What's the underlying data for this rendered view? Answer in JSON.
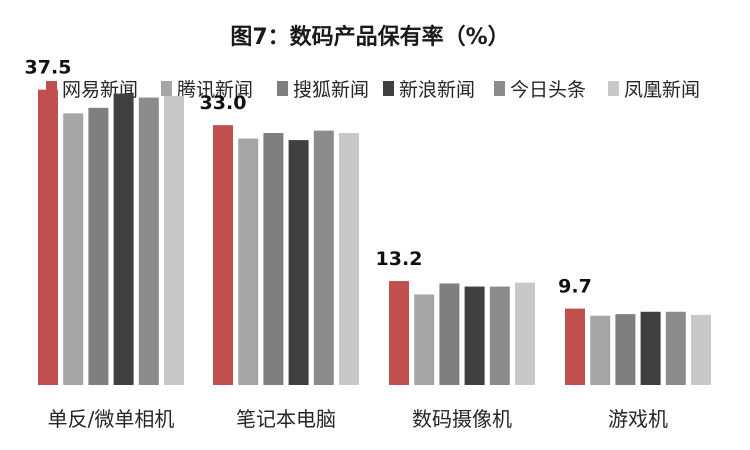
{
  "chart_data": {
    "type": "bar",
    "title": "图7：数码产品保有率（%）",
    "xlabel": "",
    "ylabel": "",
    "ylim": [
      0,
      40
    ],
    "grid": false,
    "legend_position": "top",
    "categories": [
      "单反/微单相机",
      "笔记本电脑",
      "数码摄像机",
      "游戏机"
    ],
    "series": [
      {
        "name": "网易新闻",
        "color": "#c0504d",
        "values": [
          37.5,
          33.0,
          13.2,
          9.7
        ]
      },
      {
        "name": "腾讯新闻",
        "color": "#a6a6a6",
        "values": [
          34.5,
          31.3,
          11.5,
          8.8
        ]
      },
      {
        "name": "搜狐新闻",
        "color": "#7f7f7f",
        "values": [
          35.2,
          32.0,
          12.9,
          9.0
        ]
      },
      {
        "name": "新浪新闻",
        "color": "#404040",
        "values": [
          37.0,
          31.1,
          12.5,
          9.3
        ]
      },
      {
        "name": "今日头条",
        "color": "#8c8c8c",
        "values": [
          36.5,
          32.3,
          12.5,
          9.3
        ]
      },
      {
        "name": "凤凰新闻",
        "color": "#c8c8c8",
        "values": [
          36.7,
          32.0,
          13.0,
          8.9
        ]
      }
    ],
    "data_labels": [
      {
        "category": "单反/微单相机",
        "series": "网易新闻",
        "text": "37.5"
      },
      {
        "category": "笔记本电脑",
        "series": "网易新闻",
        "text": "33.0"
      },
      {
        "category": "数码摄像机",
        "series": "网易新闻",
        "text": "13.2"
      },
      {
        "category": "游戏机",
        "series": "网易新闻",
        "text": "9.7"
      }
    ]
  }
}
